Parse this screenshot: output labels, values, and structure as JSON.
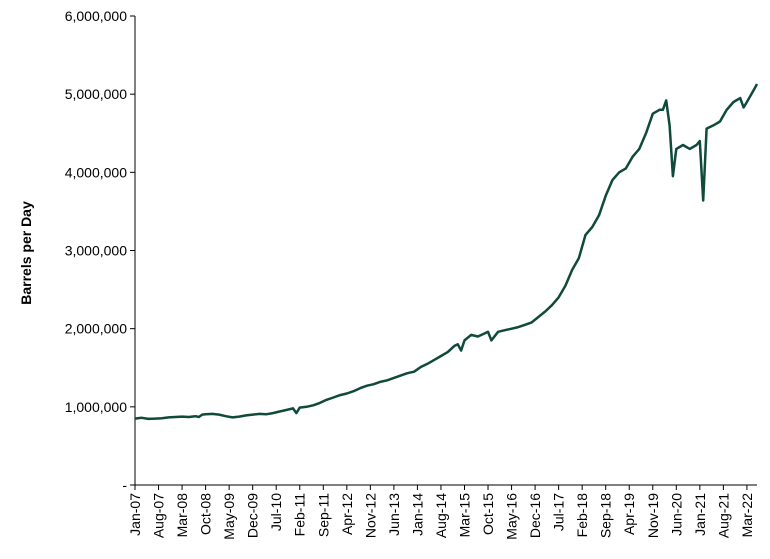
{
  "chart_data": {
    "type": "line",
    "title": "",
    "xlabel": "",
    "ylabel": "Barrels per Day",
    "ylim": [
      0,
      6000000
    ],
    "y_ticks": [
      0,
      1000000,
      2000000,
      3000000,
      4000000,
      5000000,
      6000000
    ],
    "y_tick_labels": [
      "-",
      "1,000,000",
      "2,000,000",
      "3,000,000",
      "4,000,000",
      "5,000,000",
      "6,000,000"
    ],
    "x_tick_labels": [
      "Jan-07",
      "Aug-07",
      "Mar-08",
      "Oct-08",
      "May-09",
      "Dec-09",
      "Jul-10",
      "Feb-11",
      "Sep-11",
      "Apr-12",
      "Nov-12",
      "Jun-13",
      "Jan-14",
      "Aug-14",
      "Mar-15",
      "Oct-15",
      "May-16",
      "Dec-16",
      "Jul-17",
      "Feb-18",
      "Sep-18",
      "Apr-19",
      "Nov-19",
      "Jun-20",
      "Jan-21",
      "Aug-21",
      "Mar-22"
    ],
    "grid": false,
    "line_color": "#0f4a3a",
    "series": [
      {
        "points": [
          [
            "Jan-07",
            850000
          ],
          [
            "Mar-07",
            860000
          ],
          [
            "May-07",
            845000
          ],
          [
            "Jul-07",
            850000
          ],
          [
            "Sep-07",
            855000
          ],
          [
            "Nov-07",
            865000
          ],
          [
            "Jan-08",
            870000
          ],
          [
            "Mar-08",
            875000
          ],
          [
            "May-08",
            870000
          ],
          [
            "Jul-08",
            880000
          ],
          [
            "Aug-08",
            870000
          ],
          [
            "Sep-08",
            900000
          ],
          [
            "Oct-08",
            905000
          ],
          [
            "Dec-08",
            910000
          ],
          [
            "Feb-09",
            900000
          ],
          [
            "Apr-09",
            880000
          ],
          [
            "Jun-09",
            865000
          ],
          [
            "Aug-09",
            875000
          ],
          [
            "Oct-09",
            890000
          ],
          [
            "Dec-09",
            900000
          ],
          [
            "Feb-10",
            910000
          ],
          [
            "Apr-10",
            905000
          ],
          [
            "Jun-10",
            920000
          ],
          [
            "Aug-10",
            940000
          ],
          [
            "Oct-10",
            960000
          ],
          [
            "Dec-10",
            980000
          ],
          [
            "Jan-11",
            920000
          ],
          [
            "Feb-11",
            990000
          ],
          [
            "Apr-11",
            1000000
          ],
          [
            "Jun-11",
            1020000
          ],
          [
            "Aug-11",
            1050000
          ],
          [
            "Oct-11",
            1090000
          ],
          [
            "Dec-11",
            1120000
          ],
          [
            "Feb-12",
            1150000
          ],
          [
            "Apr-12",
            1170000
          ],
          [
            "Jun-12",
            1200000
          ],
          [
            "Aug-12",
            1240000
          ],
          [
            "Oct-12",
            1270000
          ],
          [
            "Dec-12",
            1290000
          ],
          [
            "Feb-13",
            1320000
          ],
          [
            "Apr-13",
            1340000
          ],
          [
            "Jun-13",
            1370000
          ],
          [
            "Aug-13",
            1400000
          ],
          [
            "Oct-13",
            1430000
          ],
          [
            "Dec-13",
            1450000
          ],
          [
            "Feb-14",
            1510000
          ],
          [
            "Apr-14",
            1550000
          ],
          [
            "Jun-14",
            1600000
          ],
          [
            "Aug-14",
            1650000
          ],
          [
            "Oct-14",
            1700000
          ],
          [
            "Dec-14",
            1780000
          ],
          [
            "Jan-15",
            1800000
          ],
          [
            "Feb-15",
            1720000
          ],
          [
            "Mar-15",
            1850000
          ],
          [
            "May-15",
            1920000
          ],
          [
            "Jul-15",
            1900000
          ],
          [
            "Sep-15",
            1940000
          ],
          [
            "Oct-15",
            1960000
          ],
          [
            "Nov-15",
            1850000
          ],
          [
            "Jan-16",
            1960000
          ],
          [
            "Mar-16",
            1980000
          ],
          [
            "May-16",
            2000000
          ],
          [
            "Jul-16",
            2020000
          ],
          [
            "Sep-16",
            2050000
          ],
          [
            "Nov-16",
            2080000
          ],
          [
            "Jan-17",
            2150000
          ],
          [
            "Mar-17",
            2220000
          ],
          [
            "May-17",
            2300000
          ],
          [
            "Jul-17",
            2400000
          ],
          [
            "Sep-17",
            2550000
          ],
          [
            "Nov-17",
            2750000
          ],
          [
            "Jan-18",
            2900000
          ],
          [
            "Mar-18",
            3200000
          ],
          [
            "May-18",
            3300000
          ],
          [
            "Jul-18",
            3450000
          ],
          [
            "Sep-18",
            3700000
          ],
          [
            "Nov-18",
            3900000
          ],
          [
            "Jan-19",
            4000000
          ],
          [
            "Mar-19",
            4050000
          ],
          [
            "May-19",
            4200000
          ],
          [
            "Jul-19",
            4300000
          ],
          [
            "Sep-19",
            4500000
          ],
          [
            "Nov-19",
            4750000
          ],
          [
            "Jan-20",
            4800000
          ],
          [
            "Feb-20",
            4800000
          ],
          [
            "Mar-20",
            4920000
          ],
          [
            "Apr-20",
            4600000
          ],
          [
            "May-20",
            3950000
          ],
          [
            "Jun-20",
            4300000
          ],
          [
            "Aug-20",
            4350000
          ],
          [
            "Oct-20",
            4300000
          ],
          [
            "Dec-20",
            4350000
          ],
          [
            "Jan-21",
            4400000
          ],
          [
            "Feb-21",
            3640000
          ],
          [
            "Mar-21",
            4560000
          ],
          [
            "May-21",
            4600000
          ],
          [
            "Jul-21",
            4650000
          ],
          [
            "Sep-21",
            4800000
          ],
          [
            "Nov-21",
            4900000
          ],
          [
            "Jan-22",
            4950000
          ],
          [
            "Feb-22",
            4830000
          ],
          [
            "Mar-22",
            4900000
          ],
          [
            "May-22",
            5050000
          ],
          [
            "Jun-22",
            5130000
          ]
        ]
      }
    ]
  }
}
